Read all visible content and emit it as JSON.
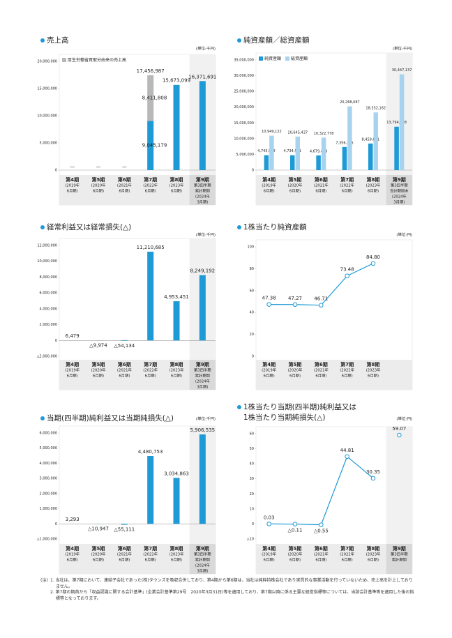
{
  "chart_data": [
    {
      "type": "bar",
      "title": "売上高",
      "unit": "(単位:千円)",
      "stacked": true,
      "legend": "upper left",
      "highlight": 5,
      "categories": [
        [
          "第4期",
          "(2019年",
          "6月期)"
        ],
        [
          "第5期",
          "(2020年",
          "6月期)"
        ],
        [
          "第6期",
          "(2021年",
          "6月期)"
        ],
        [
          "第7期",
          "(2022年",
          "6月期)"
        ],
        [
          "第8期",
          "(2023年",
          "6月期)"
        ],
        [
          "第9期",
          "第3四半期",
          "累計期間",
          "(2024年",
          "3月期)"
        ]
      ],
      "series": [
        {
          "color": "#1e9ad6",
          "values": [
            null,
            null,
            null,
            9045179,
            15673099,
            16371691
          ],
          "value_labels": [
            "—",
            "—",
            "—",
            "9,045,179",
            "15,673,099",
            "16,371,691"
          ]
        },
        {
          "name": "厚生労働省買取分由来の売上高",
          "color": "#b8b8b8",
          "values": [
            null,
            null,
            null,
            8411808,
            null,
            null
          ],
          "value_labels": [
            null,
            null,
            null,
            "8,411,808",
            null,
            null
          ]
        }
      ],
      "total_labels": [
        null,
        null,
        null,
        "17,456,987",
        null,
        null
      ],
      "ylim": [
        0,
        20000000
      ],
      "yticks": [
        0,
        {
          "value": 5000000,
          "label": "5,000,000"
        },
        {
          "value": 10000000,
          "label": "10,000,000"
        },
        {
          "value": 15000000,
          "label": "15,000,000"
        },
        {
          "value": 20000000,
          "label": "20,000,000"
        }
      ]
    },
    {
      "type": "bar",
      "title": "純資産額／総資産額",
      "unit": "(単位:千円)",
      "legend": "upper left",
      "highlight": 5,
      "categories": [
        [
          "第4期",
          "(2019年",
          "6月期)"
        ],
        [
          "第5期",
          "(2020年",
          "6月期)"
        ],
        [
          "第6期",
          "(2021年",
          "6月期)"
        ],
        [
          "第7期",
          "(2022年",
          "6月期)"
        ],
        [
          "第8期",
          "(2023年",
          "6月期)"
        ],
        [
          "第9期",
          "第3四半期",
          "会計期間末",
          "(2024年",
          "3月期)"
        ]
      ],
      "series": [
        {
          "name": "純資産額",
          "color": "#1e9ad6",
          "values": [
            4745508,
            4734561,
            4679449,
            7356305,
            8459871,
            13794508
          ],
          "value_labels": [
            "4,745,508",
            "4,734,561",
            "4,679,449",
            "7,356,305",
            "8,459,871",
            "13,794,508"
          ]
        },
        {
          "name": "総資産額",
          "color": "#a8d3ef",
          "values": [
            10949122,
            10645437,
            10322778,
            20268087,
            18332162,
            30447137
          ],
          "value_labels": [
            "10,949,122",
            "10,645,437",
            "10,322,778",
            "20,268,087",
            "18,332,162",
            "30,447,137"
          ]
        }
      ],
      "ylim": [
        0,
        35000000
      ],
      "yticks": [
        0,
        {
          "value": 5000000,
          "label": "5,000,000"
        },
        {
          "value": 10000000,
          "label": "10,000,000"
        },
        {
          "value": 15000000,
          "label": "15,000,000"
        },
        {
          "value": 20000000,
          "label": "20,000,000"
        },
        {
          "value": 25000000,
          "label": "25,000,000"
        },
        {
          "value": 30000000,
          "label": "30,000,000"
        },
        {
          "value": 35000000,
          "label": "35,000,000"
        }
      ]
    },
    {
      "type": "bar",
      "title": "経常利益又は経常損失(△)",
      "unit": "(単位:千円)",
      "highlight": 5,
      "categories": [
        [
          "第4期",
          "(2019年",
          "6月期)"
        ],
        [
          "第5期",
          "(2020年",
          "6月期)"
        ],
        [
          "第6期",
          "(2021年",
          "6月期)"
        ],
        [
          "第7期",
          "(2022年",
          "6月期)"
        ],
        [
          "第8期",
          "(2023年",
          "6月期)"
        ],
        [
          "第9期",
          "第3四半期",
          "累計期間",
          "(2024年",
          "3月期)"
        ]
      ],
      "series": [
        {
          "color": "#1e9ad6",
          "values": [
            6479,
            -9974,
            -54134,
            11210685,
            4953451,
            8249192
          ],
          "value_labels": [
            "6,479",
            "△9,974",
            "△54,134",
            "11,210,685",
            "4,953,451",
            "8,249,192"
          ]
        }
      ],
      "ylim": [
        -2000000,
        12000000
      ],
      "yticks": [
        {
          "value": -2000000,
          "label": "△2,000,000"
        },
        0,
        {
          "value": 2000000,
          "label": "2,000,000"
        },
        {
          "value": 4000000,
          "label": "4,000,000"
        },
        {
          "value": 6000000,
          "label": "6,000,000"
        },
        {
          "value": 8000000,
          "label": "8,000,000"
        },
        {
          "value": 10000000,
          "label": "10,000,000"
        },
        {
          "value": 12000000,
          "label": "12,000,000"
        }
      ]
    },
    {
      "type": "line",
      "title": "1株当たり純資産額",
      "unit": "(単位:円)",
      "categories": [
        [
          "第4期",
          "(2019年",
          "6月期)"
        ],
        [
          "第5期",
          "(2020年",
          "6月期)"
        ],
        [
          "第6期",
          "(2021年",
          "6月期)"
        ],
        [
          "第7期",
          "(2022年",
          "6月期)"
        ],
        [
          "第8期",
          "(2023年",
          "6月期)"
        ],
        null
      ],
      "series": [
        {
          "color": "#1e9ad6",
          "values": [
            47.38,
            47.27,
            46.71,
            73.48,
            84.8,
            null
          ],
          "value_labels": [
            "47.38",
            "47.27",
            "46.71",
            "73.48",
            "84.80",
            null
          ]
        }
      ],
      "ylim": [
        0,
        100
      ],
      "yticks": [
        0,
        20,
        40,
        60,
        80,
        100
      ]
    },
    {
      "type": "bar",
      "title": "当期(四半期)純利益又は当期純損失(△)",
      "unit": "(単位:千円)",
      "highlight": 5,
      "categories": [
        [
          "第4期",
          "(2019年",
          "6月期)"
        ],
        [
          "第5期",
          "(2020年",
          "6月期)"
        ],
        [
          "第6期",
          "(2021年",
          "6月期)"
        ],
        [
          "第7期",
          "(2022年",
          "6月期)"
        ],
        [
          "第8期",
          "(2023年",
          "6月期)"
        ],
        [
          "第9期",
          "第3四半期",
          "累計期間",
          "(2024年",
          "3月期)"
        ]
      ],
      "series": [
        {
          "color": "#1e9ad6",
          "values": [
            3293,
            -10947,
            -55111,
            4480753,
            3034863,
            5906535
          ],
          "value_labels": [
            "3,293",
            "△10,947",
            "△55,111",
            "4,480,753",
            "3,034,863",
            "5,906,535"
          ]
        }
      ],
      "ylim": [
        -1000000,
        6000000
      ],
      "yticks": [
        {
          "value": -1000000,
          "label": "△1,000,000"
        },
        0,
        {
          "value": 1000000,
          "label": "1,000,000"
        },
        {
          "value": 2000000,
          "label": "2,000,000"
        },
        {
          "value": 3000000,
          "label": "3,000,000"
        },
        {
          "value": 4000000,
          "label": "4,000,000"
        },
        {
          "value": 5000000,
          "label": "5,000,000"
        },
        {
          "value": 6000000,
          "label": "6,000,000"
        }
      ]
    },
    {
      "type": "line",
      "title": [
        "1株当たり当期(四半期)純利益又は",
        "1株当たり当期純損失(△)"
      ],
      "unit": "(単位:円)",
      "highlight": 5,
      "categories": [
        [
          "第4期",
          "(2019年",
          "6月期)"
        ],
        [
          "第5期",
          "(2020年",
          "6月期)"
        ],
        [
          "第6期",
          "(2021年",
          "6月期)"
        ],
        [
          "第7期",
          "(2022年",
          "6月期)"
        ],
        [
          "第8期",
          "(2023年",
          "6月期)"
        ],
        [
          "第9期",
          "第3四半期",
          "累計期間"
        ]
      ],
      "series": [
        {
          "color": "#1e9ad6",
          "values": [
            0.03,
            -0.11,
            -0.55,
            44.81,
            30.35,
            null
          ],
          "value_labels": [
            "0.03",
            "△0.11",
            "△0.55",
            "44.81",
            "30.35",
            null
          ]
        },
        {
          "color": "#1e9ad6",
          "line": false,
          "values": [
            null,
            null,
            null,
            null,
            null,
            59.07
          ],
          "value_labels": [
            null,
            null,
            null,
            null,
            null,
            "59.07"
          ]
        }
      ],
      "ylim": [
        -10,
        60
      ],
      "yticks": [
        {
          "value": -10,
          "label": "△10"
        },
        0,
        10,
        20,
        30,
        40,
        50,
        60
      ]
    }
  ],
  "notes": {
    "label": "(注)",
    "items": [
      "1. 当社は、第7期において、連結子会社であった(株)タウンズを吸収合併しており、第4期から第6期は、当社は純粋持株会社であり実質的な事業活動を行っていないため、売上高を計上しておりません。",
      "2. 第7期の期首から「収益認識に関する会計基準」(企業会計基準第29号　2020年3月31日)等を適用しており、第7期以降に係る主要な経営指標等については、当該会計基準等を適用した後の指標等となっております。"
    ]
  }
}
